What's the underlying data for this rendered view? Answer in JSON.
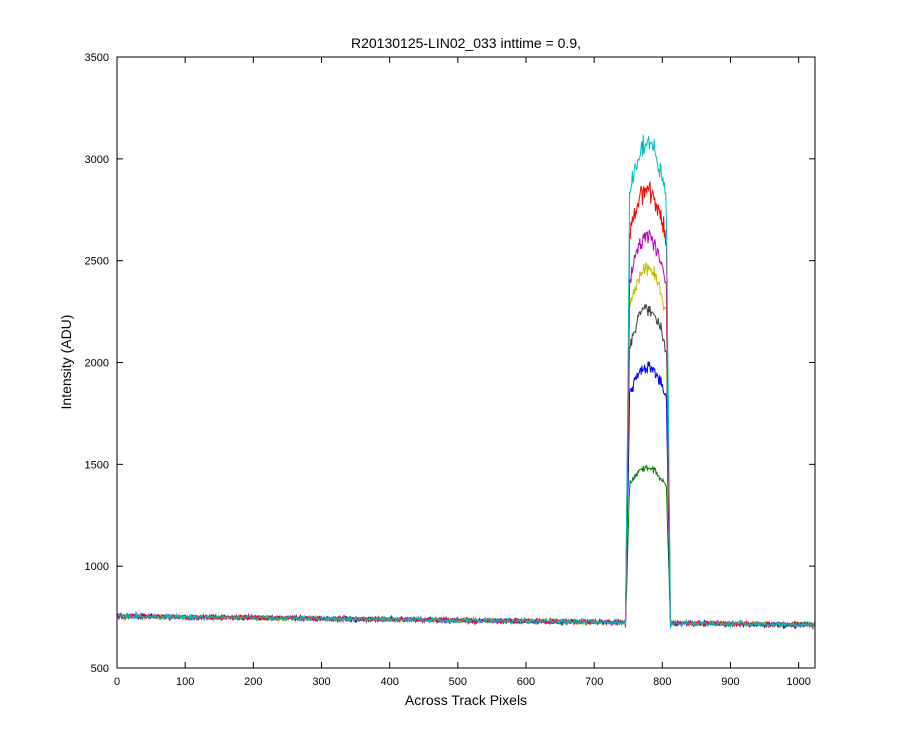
{
  "chart_data": {
    "type": "line",
    "title": "R20130125-LIN02_033 inttime = 0.9,",
    "xlabel": "Across Track Pixels",
    "ylabel": "Intensity (ADU)",
    "xlim": [
      0,
      1024
    ],
    "ylim": [
      500,
      3500
    ],
    "xticks": [
      0,
      100,
      200,
      300,
      400,
      500,
      600,
      700,
      800,
      900,
      1000
    ],
    "yticks": [
      500,
      1000,
      1500,
      2000,
      2500,
      3000,
      3500
    ],
    "grid": false,
    "legend": "none",
    "baseline": {
      "start": 755,
      "end": 712,
      "noise": 12
    },
    "peak_region": {
      "rise_start": 746,
      "rise_end": 752,
      "fall_start": 806,
      "fall_end": 812,
      "center": 778
    },
    "series": [
      {
        "color": "#008000",
        "peak": 1480
      },
      {
        "color": "#0000ff",
        "peak": 1980
      },
      {
        "color": "#404040",
        "peak": 2260
      },
      {
        "color": "#bfbf00",
        "peak": 2460
      },
      {
        "color": "#bf00bf",
        "peak": 2620
      },
      {
        "color": "#ff0000",
        "peak": 2850
      },
      {
        "color": "#00bfbf",
        "peak": 3080
      }
    ]
  }
}
